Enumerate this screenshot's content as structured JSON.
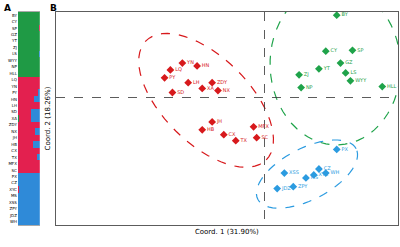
{
  "chart_data": [
    {
      "type": "bar",
      "title": "A",
      "orientation": "horizontal",
      "stacked": true,
      "tick_labels": "y",
      "grid": false,
      "xlim": [
        0,
        1
      ],
      "xticks": [],
      "categories": [
        "BY",
        "CY",
        "SP",
        "GZ",
        "YT",
        "ZJ",
        "LS",
        "WYY",
        "NP",
        "HLL",
        "LQ",
        "YN",
        "PY",
        "HN",
        "LH",
        "SD",
        "XA",
        "ZDY",
        "NX",
        "JH",
        "HB",
        "CX",
        "TX",
        "MFX",
        "SC",
        "PX",
        "CZ",
        "XYC",
        "MS",
        "XSS",
        "ZPY",
        "JDZ",
        "WH"
      ],
      "series": [
        {
          "color": "#1f9a45",
          "values": [
            1,
            1,
            0.97,
            1,
            1,
            1,
            0.95,
            1,
            1,
            1,
            0,
            0,
            0,
            0,
            0,
            0,
            0.04,
            0,
            0,
            0,
            0,
            0,
            0,
            0,
            0,
            0,
            0,
            0,
            0,
            0,
            0,
            0,
            0
          ]
        },
        {
          "color": "#e3204f",
          "values": [
            0,
            0,
            0.03,
            0,
            0,
            0,
            0.03,
            0,
            0,
            0,
            1,
            1,
            0.9,
            0.75,
            1,
            0.62,
            0.56,
            1,
            0.8,
            1,
            0.7,
            1,
            0.88,
            1,
            1,
            0,
            0,
            0.05,
            0,
            0,
            0,
            0,
            0
          ]
        },
        {
          "color": "#2f8ad8",
          "values": [
            0,
            0,
            0,
            0,
            0,
            0,
            0.02,
            0,
            0,
            0,
            0,
            0,
            0.1,
            0.25,
            0,
            0.38,
            0.4,
            0,
            0.2,
            0,
            0.3,
            0,
            0.12,
            0,
            0,
            1,
            1,
            0.95,
            1,
            1,
            1,
            1,
            1
          ]
        }
      ]
    },
    {
      "type": "scatter",
      "title": "B",
      "x_label": "Coord. 1 (31.90%)",
      "y_label": "Coord. 2 (18.26%)",
      "xlim": [
        -0.61,
        0.39
      ],
      "ylim": [
        -0.6,
        0.4
      ],
      "xticks": [
        0
      ],
      "yticks": [
        0
      ],
      "grid": true,
      "tick_labels": false,
      "series": [
        {
          "color": "#d7191c",
          "marker": "diamond",
          "labels": [
            "LQ",
            "YN",
            "PY",
            "HN",
            "LH",
            "SD",
            "XA",
            "ZDY",
            "NX",
            "JH",
            "HB",
            "CX",
            "TX",
            "MFX",
            "SC"
          ],
          "x": [
            -0.275,
            -0.24,
            -0.292,
            -0.197,
            -0.223,
            -0.269,
            -0.182,
            -0.153,
            -0.136,
            -0.153,
            -0.182,
            -0.119,
            -0.084,
            -0.032,
            -0.023
          ],
          "y": [
            0.128,
            0.16,
            0.091,
            0.147,
            0.068,
            0.022,
            0.041,
            0.068,
            0.031,
            -0.116,
            -0.153,
            -0.176,
            -0.204,
            -0.139,
            -0.19
          ]
        },
        {
          "color": "#1fa34a",
          "marker": "diamond",
          "labels": [
            "BY",
            "CY",
            "SP",
            "GZ",
            "YT",
            "ZJ",
            "LS",
            "WYY",
            "NP",
            "HLL"
          ],
          "x": [
            0.211,
            0.179,
            0.257,
            0.222,
            0.159,
            0.101,
            0.237,
            0.251,
            0.107,
            0.344
          ],
          "y": [
            0.385,
            0.216,
            0.22,
            0.16,
            0.133,
            0.105,
            0.114,
            0.077,
            0.045,
            0.05
          ]
        },
        {
          "color": "#2b9be0",
          "marker": "diamond",
          "labels": [
            "PX",
            "CZ",
            "XYC",
            "MS",
            "XSS",
            "ZPY",
            "JDZ",
            "WH"
          ],
          "x": [
            0.211,
            0.159,
            0.144,
            0.121,
            0.058,
            0.084,
            0.037,
            0.179
          ],
          "y": [
            -0.245,
            -0.337,
            -0.365,
            -0.379,
            -0.356,
            -0.42,
            -0.429,
            -0.356
          ]
        }
      ]
    }
  ]
}
